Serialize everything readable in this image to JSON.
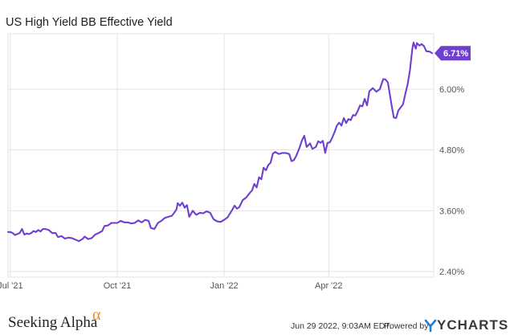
{
  "chart_data": {
    "type": "line",
    "title": "US High Yield BB Effective Yield",
    "xlabel": "",
    "ylabel": "",
    "x_ticks": [
      "Jul '21",
      "Oct '21",
      "Jan '22",
      "Apr '22"
    ],
    "y_ticks": [
      "6.00%",
      "4.80%",
      "3.60%",
      "2.40%"
    ],
    "ylim": [
      2.35,
      7.0
    ],
    "grid": true,
    "series": [
      {
        "color": "#6f3fcf",
        "last_value_label": "6.71%",
        "points": [
          [
            "2021-06-29",
            3.18
          ],
          [
            "2021-07-01",
            3.18
          ],
          [
            "2021-07-03",
            3.16
          ],
          [
            "2021-07-05",
            3.12
          ],
          [
            "2021-07-07",
            3.14
          ],
          [
            "2021-07-09",
            3.16
          ],
          [
            "2021-07-11",
            3.24
          ],
          [
            "2021-07-13",
            3.13
          ],
          [
            "2021-07-15",
            3.15
          ],
          [
            "2021-07-17",
            3.14
          ],
          [
            "2021-07-19",
            3.16
          ],
          [
            "2021-07-21",
            3.2
          ],
          [
            "2021-07-23",
            3.18
          ],
          [
            "2021-07-25",
            3.22
          ],
          [
            "2021-07-27",
            3.19
          ],
          [
            "2021-07-29",
            3.24
          ],
          [
            "2021-07-31",
            3.24
          ],
          [
            "2021-08-03",
            3.22
          ],
          [
            "2021-08-06",
            3.16
          ],
          [
            "2021-08-09",
            3.16
          ],
          [
            "2021-08-11",
            3.08
          ],
          [
            "2021-08-14",
            3.1
          ],
          [
            "2021-08-17",
            3.05
          ],
          [
            "2021-08-20",
            3.07
          ],
          [
            "2021-08-23",
            3.06
          ],
          [
            "2021-08-26",
            3.03
          ],
          [
            "2021-08-29",
            3.0
          ],
          [
            "2021-09-01",
            3.04
          ],
          [
            "2021-09-03",
            3.09
          ],
          [
            "2021-09-06",
            3.04
          ],
          [
            "2021-09-09",
            3.06
          ],
          [
            "2021-09-12",
            3.13
          ],
          [
            "2021-09-15",
            3.16
          ],
          [
            "2021-09-18",
            3.2
          ],
          [
            "2021-09-20",
            3.3
          ],
          [
            "2021-09-23",
            3.31
          ],
          [
            "2021-09-26",
            3.36
          ],
          [
            "2021-09-29",
            3.36
          ],
          [
            "2021-10-01",
            3.36
          ],
          [
            "2021-10-04",
            3.4
          ],
          [
            "2021-10-07",
            3.37
          ],
          [
            "2021-10-10",
            3.37
          ],
          [
            "2021-10-13",
            3.35
          ],
          [
            "2021-10-16",
            3.36
          ],
          [
            "2021-10-19",
            3.41
          ],
          [
            "2021-10-22",
            3.37
          ],
          [
            "2021-10-25",
            3.42
          ],
          [
            "2021-10-28",
            3.4
          ],
          [
            "2021-10-30",
            3.26
          ],
          [
            "2021-11-02",
            3.24
          ],
          [
            "2021-11-05",
            3.36
          ],
          [
            "2021-11-08",
            3.4
          ],
          [
            "2021-11-11",
            3.46
          ],
          [
            "2021-11-14",
            3.48
          ],
          [
            "2021-11-17",
            3.5
          ],
          [
            "2021-11-19",
            3.56
          ],
          [
            "2021-11-21",
            3.63
          ],
          [
            "2021-11-22",
            3.75
          ],
          [
            "2021-11-24",
            3.7
          ],
          [
            "2021-11-26",
            3.76
          ],
          [
            "2021-11-28",
            3.66
          ],
          [
            "2021-11-30",
            3.71
          ],
          [
            "2021-12-02",
            3.48
          ],
          [
            "2021-12-05",
            3.6
          ],
          [
            "2021-12-08",
            3.52
          ],
          [
            "2021-12-11",
            3.56
          ],
          [
            "2021-12-14",
            3.55
          ],
          [
            "2021-12-17",
            3.59
          ],
          [
            "2021-12-20",
            3.56
          ],
          [
            "2021-12-23",
            3.43
          ],
          [
            "2021-12-26",
            3.39
          ],
          [
            "2021-12-29",
            3.38
          ],
          [
            "2022-01-01",
            3.42
          ],
          [
            "2022-01-04",
            3.47
          ],
          [
            "2022-01-07",
            3.58
          ],
          [
            "2022-01-10",
            3.7
          ],
          [
            "2022-01-12",
            3.64
          ],
          [
            "2022-01-14",
            3.67
          ],
          [
            "2022-01-17",
            3.81
          ],
          [
            "2022-01-20",
            3.86
          ],
          [
            "2022-01-23",
            3.95
          ],
          [
            "2022-01-25",
            4.0
          ],
          [
            "2022-01-27",
            4.13
          ],
          [
            "2022-01-29",
            4.06
          ],
          [
            "2022-01-31",
            4.26
          ],
          [
            "2022-02-02",
            4.22
          ],
          [
            "2022-02-04",
            4.45
          ],
          [
            "2022-02-06",
            4.4
          ],
          [
            "2022-02-08",
            4.5
          ],
          [
            "2022-02-10",
            4.55
          ],
          [
            "2022-02-12",
            4.73
          ],
          [
            "2022-02-14",
            4.76
          ],
          [
            "2022-02-17",
            4.72
          ],
          [
            "2022-02-20",
            4.74
          ],
          [
            "2022-02-23",
            4.74
          ],
          [
            "2022-02-26",
            4.72
          ],
          [
            "2022-02-28",
            4.58
          ],
          [
            "2022-03-02",
            4.6
          ],
          [
            "2022-03-04",
            4.68
          ],
          [
            "2022-03-07",
            4.85
          ],
          [
            "2022-03-09",
            4.99
          ],
          [
            "2022-03-11",
            5.08
          ],
          [
            "2022-03-13",
            4.86
          ],
          [
            "2022-03-16",
            4.93
          ],
          [
            "2022-03-18",
            4.82
          ],
          [
            "2022-03-21",
            4.86
          ],
          [
            "2022-03-23",
            4.97
          ],
          [
            "2022-03-25",
            4.94
          ],
          [
            "2022-03-27",
            4.98
          ],
          [
            "2022-03-29",
            4.74
          ],
          [
            "2022-03-31",
            4.94
          ],
          [
            "2022-04-02",
            4.95
          ],
          [
            "2022-04-04",
            5.04
          ],
          [
            "2022-04-06",
            5.15
          ],
          [
            "2022-04-08",
            5.28
          ],
          [
            "2022-04-10",
            5.34
          ],
          [
            "2022-04-12",
            5.28
          ],
          [
            "2022-04-14",
            5.43
          ],
          [
            "2022-04-16",
            5.33
          ],
          [
            "2022-04-18",
            5.41
          ],
          [
            "2022-04-20",
            5.39
          ],
          [
            "2022-04-22",
            5.49
          ],
          [
            "2022-04-24",
            5.48
          ],
          [
            "2022-04-26",
            5.57
          ],
          [
            "2022-04-28",
            5.68
          ],
          [
            "2022-04-30",
            5.66
          ],
          [
            "2022-05-02",
            5.81
          ],
          [
            "2022-05-04",
            5.68
          ],
          [
            "2022-05-06",
            5.96
          ],
          [
            "2022-05-09",
            6.02
          ],
          [
            "2022-05-12",
            5.95
          ],
          [
            "2022-05-15",
            6.0
          ],
          [
            "2022-05-18",
            6.2
          ],
          [
            "2022-05-20",
            6.19
          ],
          [
            "2022-05-22",
            6.13
          ],
          [
            "2022-05-25",
            5.7
          ],
          [
            "2022-05-27",
            5.44
          ],
          [
            "2022-05-29",
            5.43
          ],
          [
            "2022-05-31",
            5.58
          ],
          [
            "2022-06-02",
            5.64
          ],
          [
            "2022-06-04",
            5.7
          ],
          [
            "2022-06-06",
            5.91
          ],
          [
            "2022-06-08",
            6.1
          ],
          [
            "2022-06-10",
            6.38
          ],
          [
            "2022-06-12",
            6.8
          ],
          [
            "2022-06-13",
            6.92
          ],
          [
            "2022-06-15",
            6.8
          ],
          [
            "2022-06-16",
            6.91
          ],
          [
            "2022-06-18",
            6.86
          ],
          [
            "2022-06-20",
            6.89
          ],
          [
            "2022-06-22",
            6.85
          ],
          [
            "2022-06-24",
            6.75
          ],
          [
            "2022-06-27",
            6.74
          ],
          [
            "2022-06-29",
            6.71
          ]
        ]
      }
    ]
  },
  "footer": {
    "brand_name": "Seeking Alpha",
    "brand_symbol": "α",
    "timestamp": "Jun 29 2022, 9:03AM EDT.",
    "powered_by": "Powered by",
    "ycharts_name": "YCHARTS"
  },
  "colors": {
    "line": "#6f3fcf",
    "badge": "#6f3fcf",
    "grid": "#e3e3e3",
    "brand_alpha": "#f08a24",
    "ycharts_mark": "#1d7fd6"
  }
}
